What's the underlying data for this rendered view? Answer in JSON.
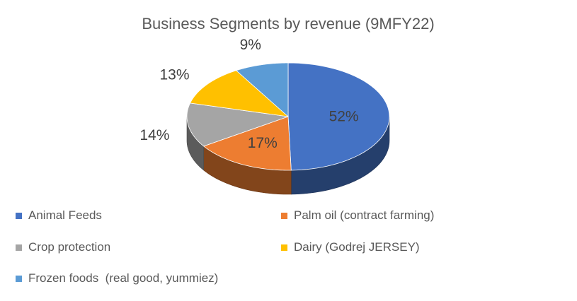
{
  "chart_data": {
    "type": "pie",
    "title": "Business Segments by revenue (9MFY22)",
    "slices": [
      {
        "name": "Animal Feeds",
        "value": 52,
        "label": "52%",
        "color": "#4472C4"
      },
      {
        "name": "Palm oil (contract farming)",
        "value": 17,
        "label": "17%",
        "color": "#ED7D31"
      },
      {
        "name": "Crop protection",
        "value": 14,
        "label": "14%",
        "color": "#A5A5A5"
      },
      {
        "name": "Dairy (Godrej JERSEY)",
        "value": 13,
        "label": "13%",
        "color": "#FFC000"
      },
      {
        "name": "Frozen foods  (real good, yummiez)",
        "value": 9,
        "label": "9%",
        "color": "#5B9BD5"
      }
    ],
    "legend_position": "bottom",
    "style": "3d-pie"
  }
}
